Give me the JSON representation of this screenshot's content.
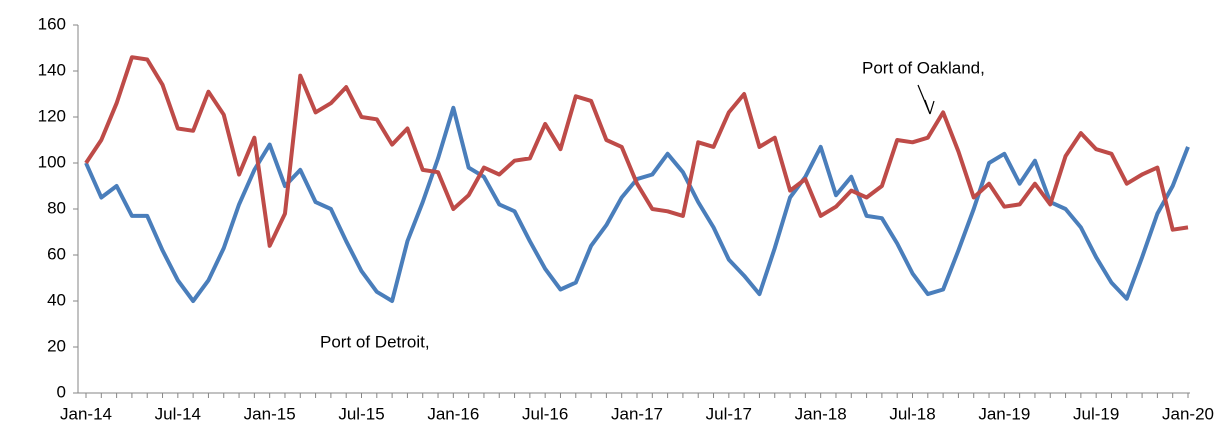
{
  "chart_data": {
    "type": "line",
    "categories": [
      "Jan-14",
      null,
      null,
      null,
      null,
      null,
      "Jul-14",
      null,
      null,
      null,
      null,
      null,
      "Jan-15",
      null,
      null,
      null,
      null,
      null,
      "Jul-15",
      null,
      null,
      null,
      null,
      null,
      "Jan-16",
      null,
      null,
      null,
      null,
      null,
      "Jul-16",
      null,
      null,
      null,
      null,
      null,
      "Jan-17",
      null,
      null,
      null,
      null,
      null,
      "Jul-17",
      null,
      null,
      null,
      null,
      null,
      "Jan-18",
      null,
      null,
      null,
      null,
      null,
      "Jul-18",
      null,
      null,
      null,
      null,
      null,
      "Jan-19",
      null,
      null,
      null,
      null,
      null,
      "Jul-19",
      null,
      null,
      null,
      null,
      null,
      "Jan-20"
    ],
    "series": [
      {
        "name": "Port of Detroit",
        "color": "#4a7ebb",
        "values": [
          100,
          85,
          90,
          77,
          77,
          62,
          49,
          40,
          49,
          63,
          82,
          97,
          108,
          90,
          97,
          83,
          80,
          66,
          53,
          44,
          40,
          66,
          83,
          102,
          124,
          98,
          94,
          82,
          79,
          66,
          54,
          45,
          48,
          64,
          73,
          85,
          93,
          95,
          104,
          96,
          83,
          72,
          58,
          51,
          43,
          63,
          85,
          94,
          107,
          86,
          94,
          77,
          76,
          65,
          52,
          43,
          45,
          62,
          80,
          100,
          104,
          91,
          101,
          83,
          80,
          72,
          59,
          48,
          41,
          59,
          78,
          90,
          107
        ]
      },
      {
        "name": "Port of Oakland",
        "color": "#be4b48",
        "values": [
          100,
          110,
          126,
          146,
          145,
          134,
          115,
          114,
          131,
          121,
          95,
          111,
          64,
          78,
          138,
          122,
          126,
          133,
          120,
          119,
          108,
          115,
          97,
          96,
          80,
          86,
          98,
          95,
          101,
          102,
          117,
          106,
          129,
          127,
          110,
          107,
          91,
          80,
          79,
          77,
          109,
          107,
          122,
          130,
          107,
          111,
          88,
          93,
          77,
          81,
          88,
          85,
          90,
          110,
          109,
          111,
          122,
          105,
          85,
          91,
          81,
          82,
          91,
          82,
          103,
          113,
          106,
          104,
          91,
          95,
          98,
          71,
          72
        ]
      }
    ],
    "annotations": [
      "Port of Oakland,",
      "Port of Detroit,"
    ],
    "ylim": [
      0,
      160
    ],
    "yticks": [
      0,
      20,
      40,
      60,
      80,
      100,
      120,
      140,
      160
    ],
    "grid": false
  }
}
